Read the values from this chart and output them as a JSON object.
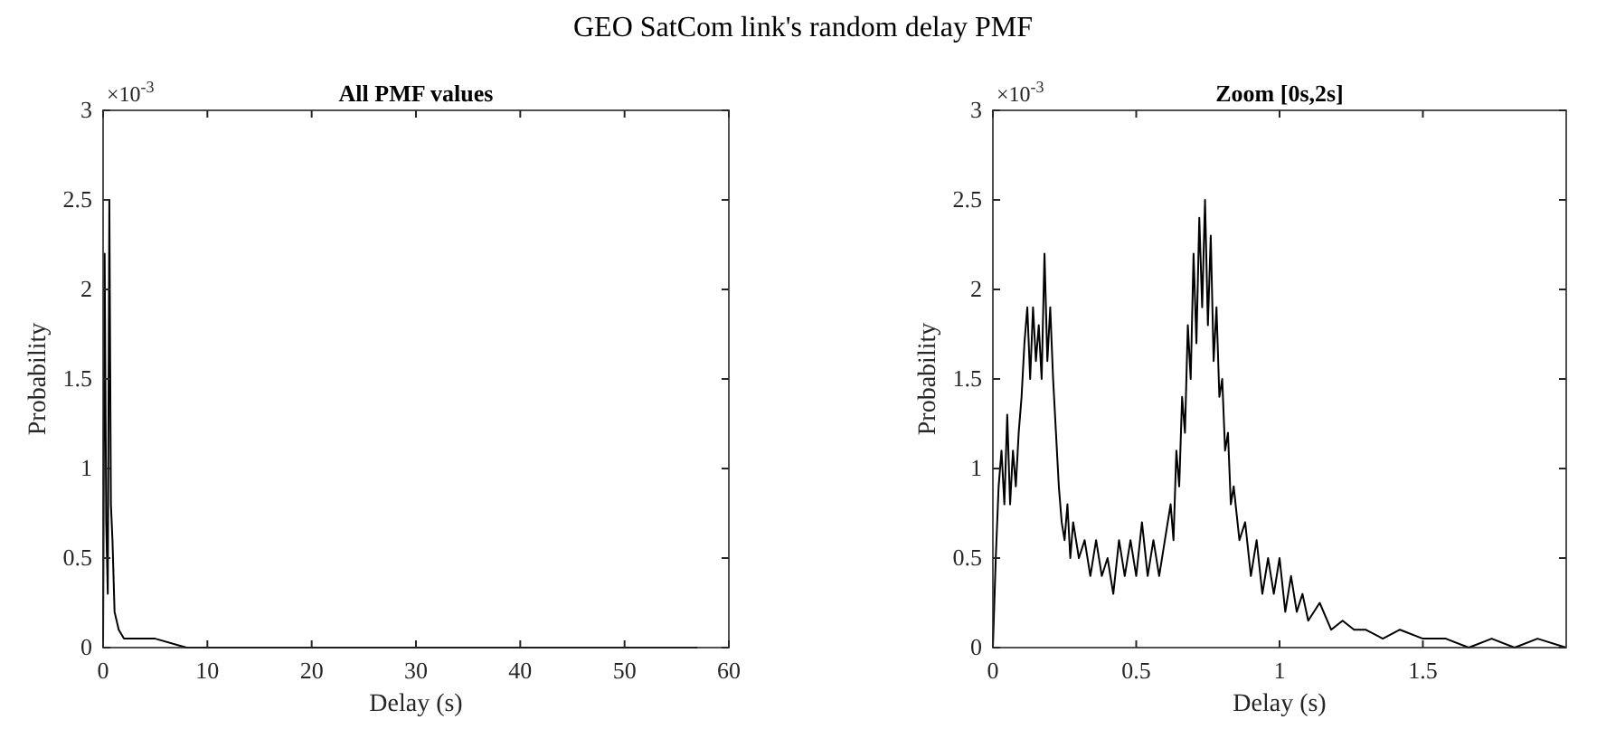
{
  "chart_data": [
    {
      "type": "line",
      "title": "All PMF values",
      "xlabel": "Delay (s)",
      "ylabel": "Probability",
      "annotations": [
        "GEO SatCom link's random delay PMF",
        "×10$^{-3}$"
      ],
      "xlim": [
        0,
        60
      ],
      "xticks": [
        0,
        10,
        20,
        30,
        40,
        50,
        60
      ],
      "ylim": [
        0,
        3
      ],
      "yticks": [
        0,
        0.5,
        1,
        1.5,
        2,
        2.5,
        3
      ],
      "series": [
        {
          "color": "#000000",
          "x": [
            0,
            0.15,
            0.3,
            0.45,
            0.6,
            0.75,
            0.9,
            1.1,
            1.5,
            2,
            3,
            5,
            8,
            15,
            30,
            45,
            57
          ],
          "values": [
            0,
            2.2,
            0.7,
            0.3,
            2.5,
            0.8,
            0.6,
            0.2,
            0.1,
            0.05,
            0.05,
            0.05,
            0,
            0,
            0,
            0,
            0
          ]
        }
      ]
    },
    {
      "type": "line",
      "title": "Zoom [0s,2s]",
      "xlabel": "Delay (s)",
      "ylabel": "Probability",
      "annotations": [
        "×10$^{-3}$"
      ],
      "xlim": [
        0,
        2
      ],
      "xticks": [
        0,
        0.5,
        1,
        1.5
      ],
      "ylim": [
        0,
        3
      ],
      "yticks": [
        0,
        0.5,
        1,
        1.5,
        2,
        2.5,
        3
      ],
      "series": [
        {
          "color": "#000000",
          "x": [
            0,
            0.01,
            0.02,
            0.03,
            0.04,
            0.05,
            0.06,
            0.07,
            0.08,
            0.09,
            0.1,
            0.11,
            0.12,
            0.13,
            0.14,
            0.15,
            0.16,
            0.17,
            0.18,
            0.19,
            0.2,
            0.21,
            0.22,
            0.23,
            0.24,
            0.25,
            0.26,
            0.27,
            0.28,
            0.3,
            0.32,
            0.34,
            0.36,
            0.38,
            0.4,
            0.42,
            0.44,
            0.46,
            0.48,
            0.5,
            0.52,
            0.54,
            0.56,
            0.58,
            0.6,
            0.62,
            0.63,
            0.64,
            0.65,
            0.66,
            0.67,
            0.68,
            0.69,
            0.7,
            0.71,
            0.72,
            0.73,
            0.74,
            0.75,
            0.76,
            0.77,
            0.78,
            0.79,
            0.8,
            0.81,
            0.82,
            0.83,
            0.84,
            0.86,
            0.88,
            0.9,
            0.92,
            0.94,
            0.96,
            0.98,
            1.0,
            1.02,
            1.04,
            1.06,
            1.08,
            1.1,
            1.14,
            1.18,
            1.22,
            1.26,
            1.3,
            1.36,
            1.42,
            1.5,
            1.58,
            1.66,
            1.74,
            1.82,
            1.9,
            2.0
          ],
          "values": [
            0,
            0.5,
            0.9,
            1.1,
            0.8,
            1.3,
            0.8,
            1.1,
            0.9,
            1.2,
            1.4,
            1.7,
            1.9,
            1.5,
            1.9,
            1.6,
            1.8,
            1.5,
            2.2,
            1.6,
            1.9,
            1.5,
            1.2,
            0.9,
            0.7,
            0.6,
            0.8,
            0.5,
            0.7,
            0.5,
            0.6,
            0.4,
            0.6,
            0.4,
            0.5,
            0.3,
            0.6,
            0.4,
            0.6,
            0.4,
            0.7,
            0.4,
            0.6,
            0.4,
            0.6,
            0.8,
            0.6,
            1.1,
            0.9,
            1.4,
            1.2,
            1.8,
            1.5,
            2.2,
            1.7,
            2.4,
            1.9,
            2.5,
            1.8,
            2.3,
            1.6,
            1.9,
            1.4,
            1.5,
            1.1,
            1.2,
            0.8,
            0.9,
            0.6,
            0.7,
            0.4,
            0.6,
            0.3,
            0.5,
            0.3,
            0.5,
            0.2,
            0.4,
            0.2,
            0.3,
            0.15,
            0.25,
            0.1,
            0.15,
            0.1,
            0.1,
            0.05,
            0.1,
            0.05,
            0.05,
            0,
            0.05,
            0,
            0.05,
            0
          ]
        }
      ]
    }
  ]
}
